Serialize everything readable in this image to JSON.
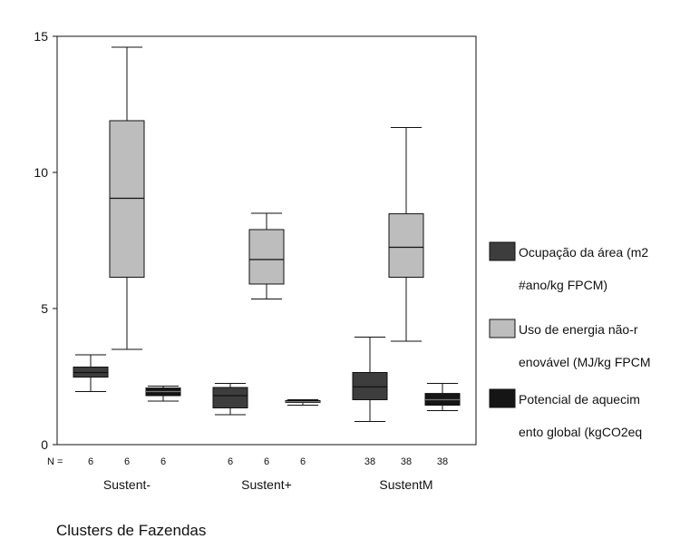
{
  "chart_data": {
    "type": "boxplot",
    "xlabel": "Clusters de Fazendas",
    "ylabel": "",
    "ylim": [
      0,
      15
    ],
    "yticks": [
      0,
      5,
      10,
      15
    ],
    "grid": false,
    "legend_position": "right",
    "n_label": "N =",
    "categories": [
      "Sustent-",
      "Sustent+",
      "SustentM"
    ],
    "series": [
      {
        "name_lines": [
          "Ocupação da área (m2",
          "#ano/kg FPCM)"
        ],
        "color": "#3d3d3d",
        "n": [
          "6",
          "6",
          "38"
        ],
        "boxes": [
          {
            "min": 1.95,
            "q1": 2.48,
            "median": 2.65,
            "q3": 2.85,
            "max": 3.3
          },
          {
            "min": 1.1,
            "q1": 1.35,
            "median": 1.8,
            "q3": 2.1,
            "max": 2.25
          },
          {
            "min": 0.85,
            "q1": 1.65,
            "median": 2.12,
            "q3": 2.65,
            "max": 3.95
          }
        ]
      },
      {
        "name_lines": [
          "Uso de energia não-r",
          "enovável (MJ/kg FPCM"
        ],
        "color": "#bdbdbd",
        "n": [
          "6",
          "6",
          "38"
        ],
        "boxes": [
          {
            "min": 3.5,
            "q1": 6.15,
            "median": 9.05,
            "q3": 11.9,
            "max": 14.6
          },
          {
            "min": 5.35,
            "q1": 5.9,
            "median": 6.8,
            "q3": 7.9,
            "max": 8.5
          },
          {
            "min": 3.8,
            "q1": 6.15,
            "median": 7.25,
            "q3": 8.48,
            "max": 11.65
          }
        ]
      },
      {
        "name_lines": [
          "Potencial de aquecim",
          "ento global (kgCO2eq"
        ],
        "color": "#151515",
        "n": [
          "6",
          "6",
          "38"
        ],
        "boxes": [
          {
            "min": 1.6,
            "q1": 1.8,
            "median": 1.95,
            "q3": 2.08,
            "max": 2.15
          },
          {
            "min": 1.45,
            "q1": 1.55,
            "median": 1.58,
            "q3": 1.62,
            "max": 1.65
          },
          {
            "min": 1.25,
            "q1": 1.45,
            "median": 1.65,
            "q3": 1.88,
            "max": 2.25
          }
        ]
      }
    ]
  }
}
